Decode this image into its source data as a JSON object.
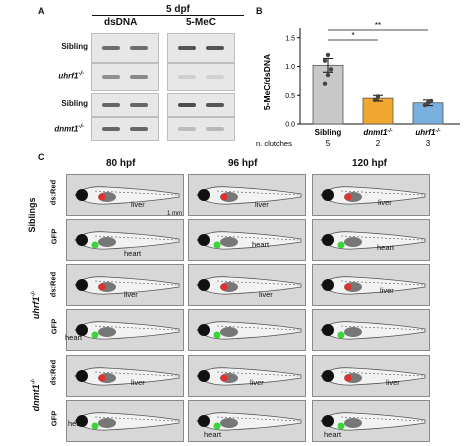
{
  "panelA": {
    "label": "A",
    "header": "5 dpf",
    "col_dsDNA": "dsDNA",
    "col_5MeC": "5-MeC",
    "rows": [
      "Sibling",
      "uhrf1",
      "Sibling",
      "dnmt1"
    ],
    "sup": "-/-"
  },
  "panelB": {
    "label": "B",
    "sig1": "*",
    "sig2": "**",
    "clutch_label": "n. clutches"
  },
  "chart_data": {
    "type": "bar",
    "categories": [
      "Sibling",
      "dnmt1-/-",
      "uhrf1-/-"
    ],
    "values": [
      1.02,
      0.45,
      0.37
    ],
    "errors": [
      0.12,
      0.05,
      0.05
    ],
    "points": [
      [
        0.7,
        0.85,
        0.95,
        1.1,
        1.2
      ],
      [
        0.42,
        0.48
      ],
      [
        0.33,
        0.37,
        0.4
      ]
    ],
    "colors": [
      "#c8c8c8",
      "#f0a830",
      "#7ab0de"
    ],
    "clutches": [
      "5",
      "2",
      "3"
    ],
    "ylabel": "5-MeC/dsDNA",
    "yticks": [
      "0.0",
      "0.5",
      "1.0",
      "1.5"
    ],
    "ylim": [
      0,
      1.6
    ]
  },
  "panelC": {
    "label": "C",
    "timepoints": [
      "80 hpf",
      "96 hpf",
      "120 hpf"
    ],
    "groups": [
      "Siblings",
      "uhrf1",
      "dnmt1"
    ],
    "sup": "-/-",
    "channels": [
      "ds:Red",
      "GFP"
    ],
    "liver": "liver",
    "heart": "heart",
    "scale": "1 mm"
  }
}
